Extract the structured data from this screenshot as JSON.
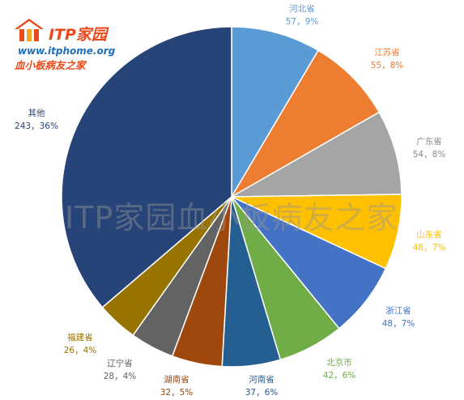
{
  "logo": {
    "brand": "ITP家园",
    "url": "www.itphome.org",
    "slogan": "血小板病友之家"
  },
  "watermark": "ITP家园血小板病友之家",
  "chart_data": {
    "type": "pie",
    "title": "",
    "start_angle_deg": 0,
    "direction": "clockwise",
    "slices": [
      {
        "name": "河北省",
        "value": 57,
        "percent": "9%",
        "color": "#5b9bd5"
      },
      {
        "name": "江苏省",
        "value": 55,
        "percent": "8%",
        "color": "#ed7d31"
      },
      {
        "name": "广东省",
        "value": 54,
        "percent": "8%",
        "color": "#a5a5a5"
      },
      {
        "name": "山东省",
        "value": 48,
        "percent": "7%",
        "color": "#ffc000"
      },
      {
        "name": "浙江省",
        "value": 48,
        "percent": "7%",
        "color": "#4472c4"
      },
      {
        "name": "北京市",
        "value": 42,
        "percent": "6%",
        "color": "#70ad47"
      },
      {
        "name": "河南省",
        "value": 37,
        "percent": "6%",
        "color": "#255e91"
      },
      {
        "name": "湖南省",
        "value": 32,
        "percent": "5%",
        "color": "#9e480e"
      },
      {
        "name": "辽宁省",
        "value": 28,
        "percent": "4%",
        "color": "#636363"
      },
      {
        "name": "福建省",
        "value": 26,
        "percent": "4%",
        "color": "#997300"
      },
      {
        "name": "其他",
        "value": 243,
        "percent": "36%",
        "color": "#264478"
      }
    ]
  }
}
